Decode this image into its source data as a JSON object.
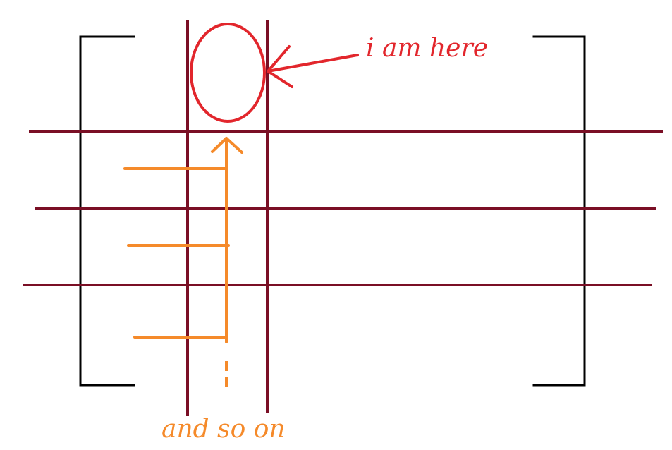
{
  "annotations": {
    "marker_label": "i am here",
    "continuation_label": "and so on"
  },
  "colors": {
    "bracket": "#000000",
    "grid_lines": "#7a0f25",
    "marker": "#e2262c",
    "path": "#f58a2a"
  }
}
